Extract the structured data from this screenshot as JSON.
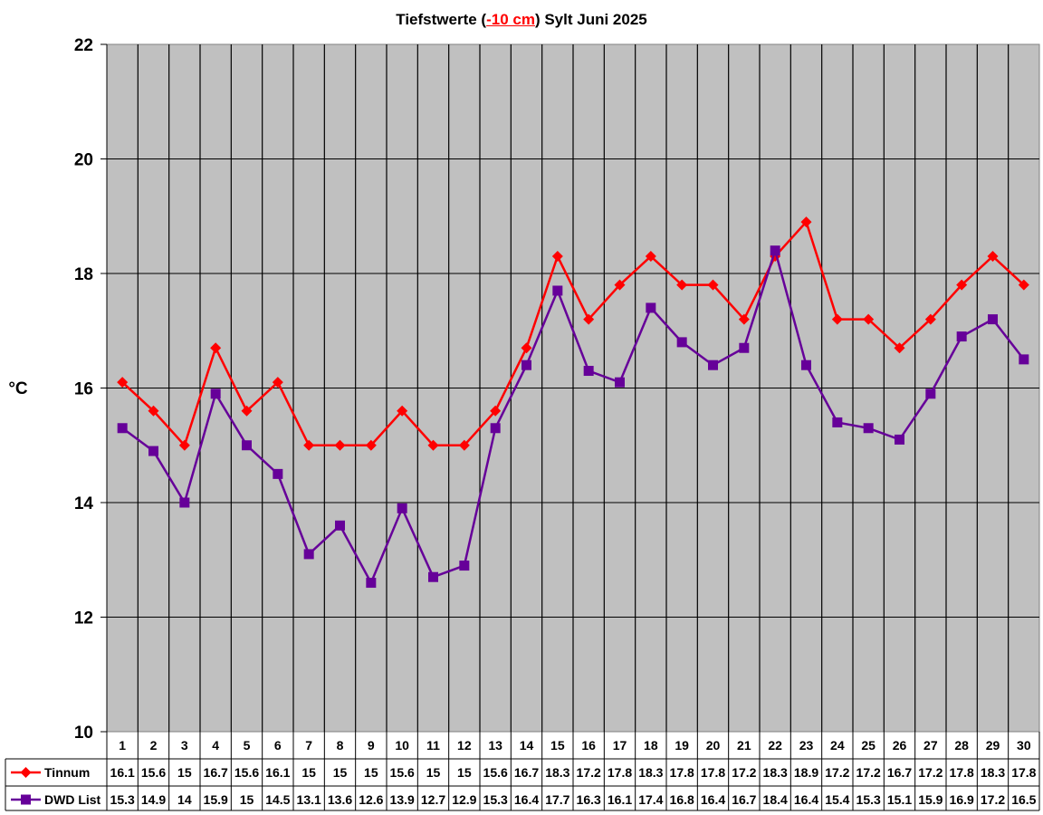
{
  "title": {
    "prefix": "Tiefstwerte (",
    "highlight": "-10 cm",
    "suffix": ") Sylt Juni 2025",
    "highlight_color": "#ff0000"
  },
  "chart_data": {
    "type": "line",
    "title": "Tiefstwerte (-10 cm) Sylt Juni 2025",
    "xlabel": "",
    "ylabel": "°C",
    "ylim": [
      10,
      22
    ],
    "yticks": [
      10,
      12,
      14,
      16,
      18,
      20,
      22
    ],
    "grid": true,
    "plot_background": "#c0c0c0",
    "legend_position": "data-table-bottom",
    "categories": [
      "1",
      "2",
      "3",
      "4",
      "5",
      "6",
      "7",
      "8",
      "9",
      "10",
      "11",
      "12",
      "13",
      "14",
      "15",
      "16",
      "17",
      "18",
      "19",
      "20",
      "21",
      "22",
      "23",
      "24",
      "25",
      "26",
      "27",
      "28",
      "29",
      "30"
    ],
    "series": [
      {
        "name": "Tinnum",
        "color": "#ff0000",
        "marker": "diamond",
        "values": [
          16.1,
          15.6,
          15,
          16.7,
          15.6,
          16.1,
          15,
          15,
          15,
          15.6,
          15,
          15,
          15.6,
          16.7,
          18.3,
          17.2,
          17.8,
          18.3,
          17.8,
          17.8,
          17.2,
          18.3,
          18.9,
          17.2,
          17.2,
          16.7,
          17.2,
          17.8,
          18.3,
          17.8
        ]
      },
      {
        "name": "DWD List",
        "color": "#660099",
        "marker": "square",
        "values": [
          15.3,
          14.9,
          14,
          15.9,
          15,
          14.5,
          13.1,
          13.6,
          12.6,
          13.9,
          12.7,
          12.9,
          15.3,
          16.4,
          17.7,
          16.3,
          16.1,
          17.4,
          16.8,
          16.4,
          16.7,
          18.4,
          16.4,
          15.4,
          15.3,
          15.1,
          15.9,
          16.9,
          17.2,
          16.5
        ]
      }
    ]
  }
}
